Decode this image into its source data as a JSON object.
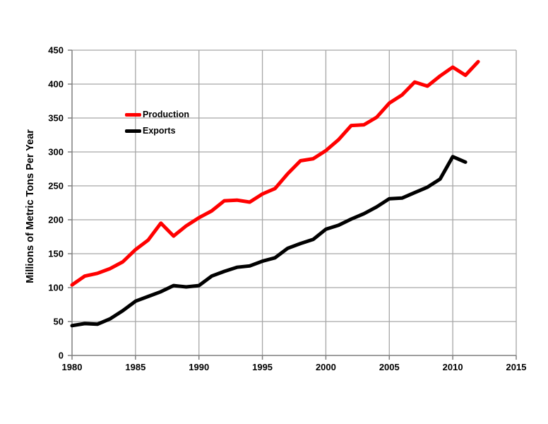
{
  "chart_data": {
    "type": "line",
    "title": "",
    "xlabel": "",
    "ylabel": "Millions of Metric Tons Per Year",
    "xlim": [
      1980,
      2015
    ],
    "ylim": [
      0,
      450
    ],
    "x_ticks": [
      1980,
      1985,
      1990,
      1995,
      2000,
      2005,
      2010,
      2015
    ],
    "y_ticks": [
      0,
      50,
      100,
      150,
      200,
      250,
      300,
      350,
      400,
      450
    ],
    "grid": true,
    "legend_position": "inside-upper-left",
    "colors": {
      "production": "#ff0000",
      "exports": "#000000",
      "gridline": "#a6a6a6",
      "axis": "#7f7f7f",
      "text": "#000000",
      "background": "#ffffff"
    },
    "series": [
      {
        "name": "Production",
        "color_key": "production",
        "x": [
          1980,
          1981,
          1982,
          1983,
          1984,
          1985,
          1986,
          1987,
          1988,
          1989,
          1990,
          1991,
          1992,
          1993,
          1994,
          1995,
          1996,
          1997,
          1998,
          1999,
          2000,
          2001,
          2002,
          2003,
          2004,
          2005,
          2006,
          2007,
          2008,
          2009,
          2010,
          2011,
          2012
        ],
        "values": [
          104,
          117,
          121,
          128,
          138,
          156,
          170,
          195,
          176,
          191,
          203,
          213,
          228,
          229,
          226,
          238,
          246,
          268,
          287,
          290,
          302,
          318,
          339,
          340,
          351,
          372,
          384,
          403,
          397,
          412,
          425,
          413,
          433
        ]
      },
      {
        "name": "Exports",
        "color_key": "exports",
        "x": [
          1980,
          1981,
          1982,
          1983,
          1984,
          1985,
          1986,
          1987,
          1988,
          1989,
          1990,
          1991,
          1992,
          1993,
          1994,
          1995,
          1996,
          1997,
          1998,
          1999,
          2000,
          2001,
          2002,
          2003,
          2004,
          2005,
          2006,
          2007,
          2008,
          2009,
          2010,
          2011
        ],
        "values": [
          44,
          47,
          46,
          54,
          66,
          80,
          87,
          94,
          103,
          101,
          103,
          117,
          124,
          130,
          132,
          139,
          144,
          158,
          165,
          171,
          186,
          192,
          201,
          209,
          219,
          231,
          232,
          240,
          248,
          260,
          293,
          285
        ]
      }
    ]
  }
}
